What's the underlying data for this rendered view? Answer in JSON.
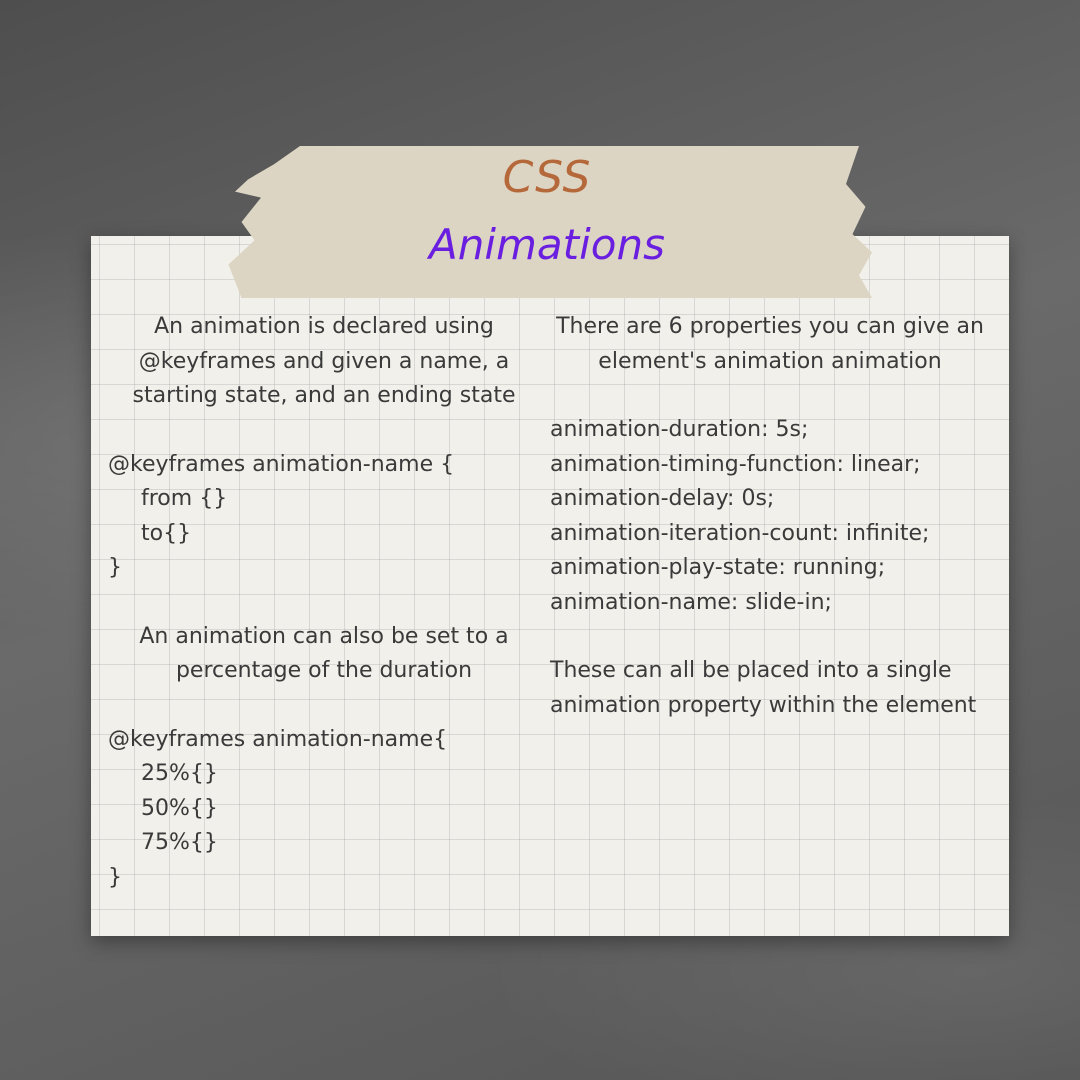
{
  "title": "CSS",
  "subtitle": "Animations",
  "left": {
    "intro": "An animation is declared using @keyframes and given a name, a starting state, and an ending state",
    "code1": [
      "@keyframes animation-name {",
      "from {}",
      "to{}",
      "}"
    ],
    "intro2": "An animation can also be set to a percentage of the duration",
    "code2": [
      "@keyframes animation-name{",
      "25%{}",
      "50%{}",
      "75%{}",
      "}"
    ]
  },
  "right": {
    "intro": "There are 6 properties you can give an element's animation animation",
    "properties": [
      "animation-duration: 5s;",
      "animation-timing-function: linear;",
      "animation-delay: 0s;",
      "animation-iteration-count: infinite;",
      "animation-play-state: running;",
      "animation-name: slide-in;"
    ],
    "outro": "These can all be placed into a single animation property within the element"
  }
}
